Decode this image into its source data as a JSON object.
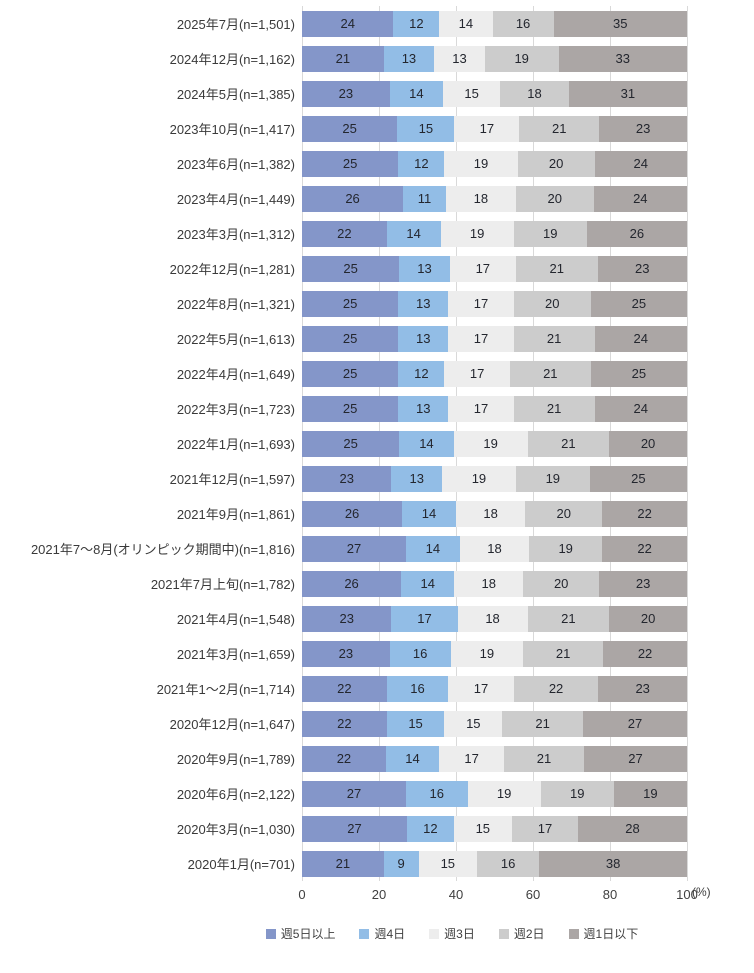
{
  "chart_data": {
    "type": "bar",
    "orientation": "horizontal",
    "stacked": true,
    "xlim": [
      0,
      100
    ],
    "grid": true,
    "unit_label": "(%)",
    "axis_ticks": [
      "0",
      "20",
      "40",
      "60",
      "80",
      "100"
    ],
    "legend_position": "bottom",
    "series_names": [
      "週5日以上",
      "週4日",
      "週3日",
      "週2日",
      "週1日以下"
    ],
    "series_colors": [
      "#8496C9",
      "#92BDE6",
      "#EDEDED",
      "#CCCCCC",
      "#ABA6A5"
    ],
    "rows": [
      {
        "label": "2025年7月(n=1,501)",
        "values": [
          24,
          12,
          14,
          16,
          35
        ]
      },
      {
        "label": "2024年12月(n=1,162)",
        "values": [
          21,
          13,
          13,
          19,
          33
        ]
      },
      {
        "label": "2024年5月(n=1,385)",
        "values": [
          23,
          14,
          15,
          18,
          31
        ]
      },
      {
        "label": "2023年10月(n=1,417)",
        "values": [
          25,
          15,
          17,
          21,
          23
        ]
      },
      {
        "label": "2023年6月(n=1,382)",
        "values": [
          25,
          12,
          19,
          20,
          24
        ]
      },
      {
        "label": "2023年4月(n=1,449)",
        "values": [
          26,
          11,
          18,
          20,
          24
        ]
      },
      {
        "label": "2023年3月(n=1,312)",
        "values": [
          22,
          14,
          19,
          19,
          26
        ]
      },
      {
        "label": "2022年12月(n=1,281)",
        "values": [
          25,
          13,
          17,
          21,
          23
        ]
      },
      {
        "label": "2022年8月(n=1,321)",
        "values": [
          25,
          13,
          17,
          20,
          25
        ]
      },
      {
        "label": "2022年5月(n=1,613)",
        "values": [
          25,
          13,
          17,
          21,
          24
        ]
      },
      {
        "label": "2022年4月(n=1,649)",
        "values": [
          25,
          12,
          17,
          21,
          25
        ]
      },
      {
        "label": "2022年3月(n=1,723)",
        "values": [
          25,
          13,
          17,
          21,
          24
        ]
      },
      {
        "label": "2022年1月(n=1,693)",
        "values": [
          25,
          14,
          19,
          21,
          20
        ]
      },
      {
        "label": "2021年12月(n=1,597)",
        "values": [
          23,
          13,
          19,
          19,
          25
        ]
      },
      {
        "label": "2021年9月(n=1,861)",
        "values": [
          26,
          14,
          18,
          20,
          22
        ]
      },
      {
        "label": "2021年7〜8月(オリンピック期間中)(n=1,816)",
        "values": [
          27,
          14,
          18,
          19,
          22
        ]
      },
      {
        "label": "2021年7月上旬(n=1,782)",
        "values": [
          26,
          14,
          18,
          20,
          23
        ]
      },
      {
        "label": "2021年4月(n=1,548)",
        "values": [
          23,
          17,
          18,
          21,
          20
        ]
      },
      {
        "label": "2021年3月(n=1,659)",
        "values": [
          23,
          16,
          19,
          21,
          22
        ]
      },
      {
        "label": "2021年1〜2月(n=1,714)",
        "values": [
          22,
          16,
          17,
          22,
          23
        ]
      },
      {
        "label": "2020年12月(n=1,647)",
        "values": [
          22,
          15,
          15,
          21,
          27
        ]
      },
      {
        "label": "2020年9月(n=1,789)",
        "values": [
          22,
          14,
          17,
          21,
          27
        ]
      },
      {
        "label": "2020年6月(n=2,122)",
        "values": [
          27,
          16,
          19,
          19,
          19
        ]
      },
      {
        "label": "2020年3月(n=1,030)",
        "values": [
          27,
          12,
          15,
          17,
          28
        ]
      },
      {
        "label": "2020年1月(n=701)",
        "values": [
          21,
          9,
          15,
          16,
          38
        ]
      }
    ]
  }
}
